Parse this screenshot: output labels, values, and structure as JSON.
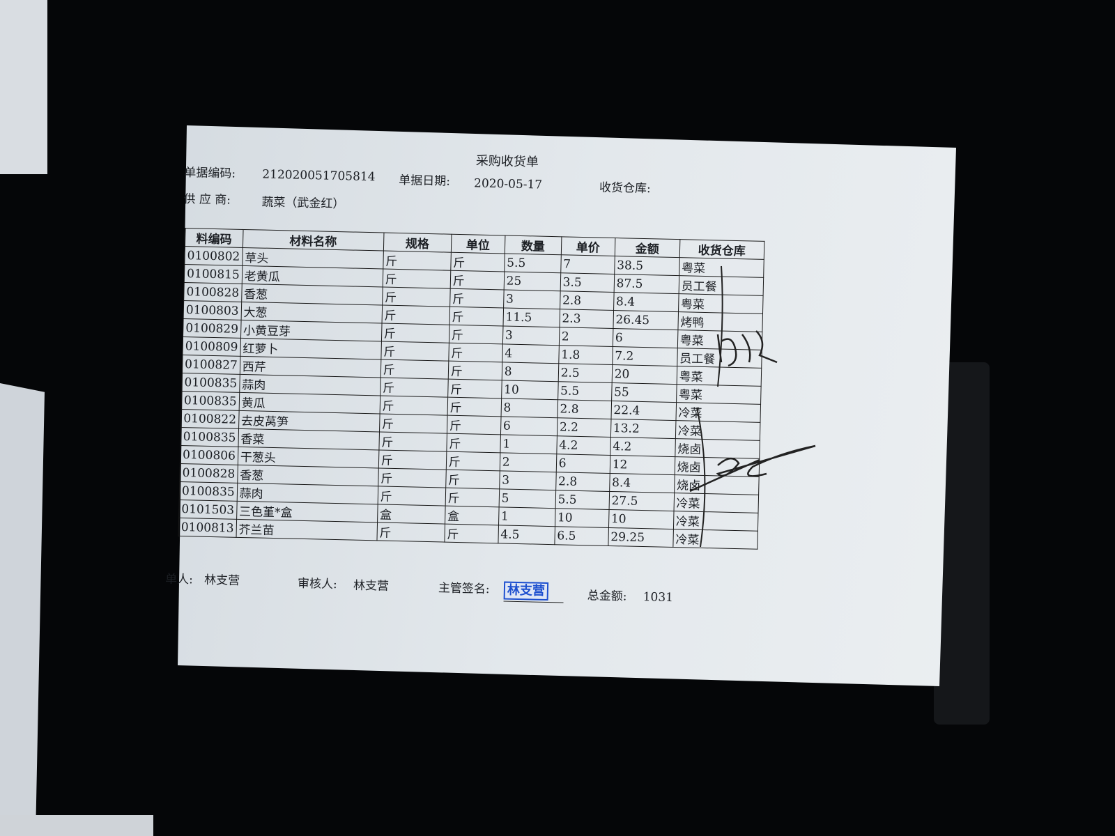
{
  "document": {
    "title": "采购收货单",
    "doc_no_label": "单据编码:",
    "doc_no": "212020051705814",
    "doc_date_label": "单据日期:",
    "doc_date": "2020-05-17",
    "warehouse_label": "收货仓库:",
    "supplier_label": "供 应 商:",
    "supplier": "蔬菜（武金红）"
  },
  "table": {
    "headers": [
      "料编码",
      "材料名称",
      "规格",
      "单位",
      "数量",
      "单价",
      "金额",
      "收货仓库"
    ],
    "rows": [
      [
        "0100802",
        "草头",
        "斤",
        "斤",
        "5.5",
        "7",
        "38.5",
        "粤菜"
      ],
      [
        "0100815",
        "老黄瓜",
        "斤",
        "斤",
        "25",
        "3.5",
        "87.5",
        "员工餐"
      ],
      [
        "0100828",
        "香葱",
        "斤",
        "斤",
        "3",
        "2.8",
        "8.4",
        "粤菜"
      ],
      [
        "0100803",
        "大葱",
        "斤",
        "斤",
        "11.5",
        "2.3",
        "26.45",
        "烤鸭"
      ],
      [
        "0100829",
        "小黄豆芽",
        "斤",
        "斤",
        "3",
        "2",
        "6",
        "粤菜"
      ],
      [
        "0100809",
        "红萝卜",
        "斤",
        "斤",
        "4",
        "1.8",
        "7.2",
        "员工餐"
      ],
      [
        "0100827",
        "西芹",
        "斤",
        "斤",
        "8",
        "2.5",
        "20",
        "粤菜"
      ],
      [
        "0100835",
        "蒜肉",
        "斤",
        "斤",
        "10",
        "5.5",
        "55",
        "粤菜"
      ],
      [
        "0100835",
        "黄瓜",
        "斤",
        "斤",
        "8",
        "2.8",
        "22.4",
        "冷菜"
      ],
      [
        "0100822",
        "去皮莴笋",
        "斤",
        "斤",
        "6",
        "2.2",
        "13.2",
        "冷菜"
      ],
      [
        "0100835",
        "香菜",
        "斤",
        "斤",
        "1",
        "4.2",
        "4.2",
        "烧卤"
      ],
      [
        "0100806",
        "干葱头",
        "斤",
        "斤",
        "2",
        "6",
        "12",
        "烧卤"
      ],
      [
        "0100828",
        "香葱",
        "斤",
        "斤",
        "3",
        "2.8",
        "8.4",
        "烧卤"
      ],
      [
        "0100835",
        "蒜肉",
        "斤",
        "斤",
        "5",
        "5.5",
        "27.5",
        "冷菜"
      ],
      [
        "0101503",
        "三色堇*盒",
        "盒",
        "盒",
        "1",
        "10",
        "10",
        "冷菜"
      ],
      [
        "0100813",
        "芥兰苗",
        "斤",
        "斤",
        "4.5",
        "6.5",
        "29.25",
        "冷菜"
      ]
    ]
  },
  "footer": {
    "maker_label": "单人:",
    "maker": "林支营",
    "reviewer_label": "审核人:",
    "reviewer": "林支营",
    "supervisor_label": "主管签名:",
    "supervisor_stamp": "林支营",
    "total_label": "总金额:",
    "total": "1031"
  },
  "colors": {
    "stamp": "#1d4fcf",
    "ink": "#1c1f24"
  }
}
